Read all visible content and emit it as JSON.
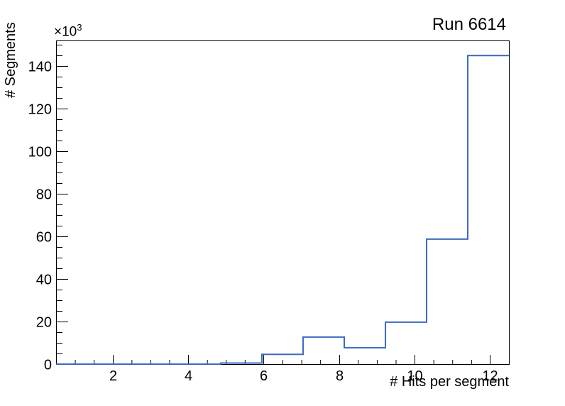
{
  "chart": {
    "title": "Run 6614",
    "xlabel": "# Hits per segment",
    "ylabel": "# Segments",
    "y_multiplier_base": "×10",
    "y_multiplier_exp": "3"
  },
  "chart_data": {
    "type": "bar",
    "style": "step-histogram-outline (ROOT TH1 style, unfilled)",
    "title": "Run 6614",
    "xlabel": "# Hits per segment",
    "ylabel": "# Segments",
    "y_units": "thousands (axis shows ×10^3)",
    "bin_edges": [
      0.5,
      1.591,
      2.682,
      3.773,
      4.864,
      5.955,
      7.045,
      8.136,
      9.227,
      10.318,
      11.409,
      12.5
    ],
    "values_thousands": [
      0,
      0,
      0,
      0,
      0.5,
      4.6,
      12.7,
      7.7,
      19.7,
      58.7,
      144.9
    ],
    "xlim": [
      0.5,
      12.5
    ],
    "ylim_thousands": [
      0,
      152
    ],
    "x_major_ticks": [
      2,
      4,
      6,
      8,
      10,
      12
    ],
    "x_minor_tick_step": 0.5,
    "y_major_ticks_thousands": [
      0,
      20,
      40,
      60,
      80,
      100,
      120,
      140
    ],
    "y_minor_tick_step_thousands": 5,
    "grid": false,
    "legend": "none",
    "line_color": "#3a6abf",
    "axis_color": "#000000",
    "background_color": "#ffffff"
  }
}
